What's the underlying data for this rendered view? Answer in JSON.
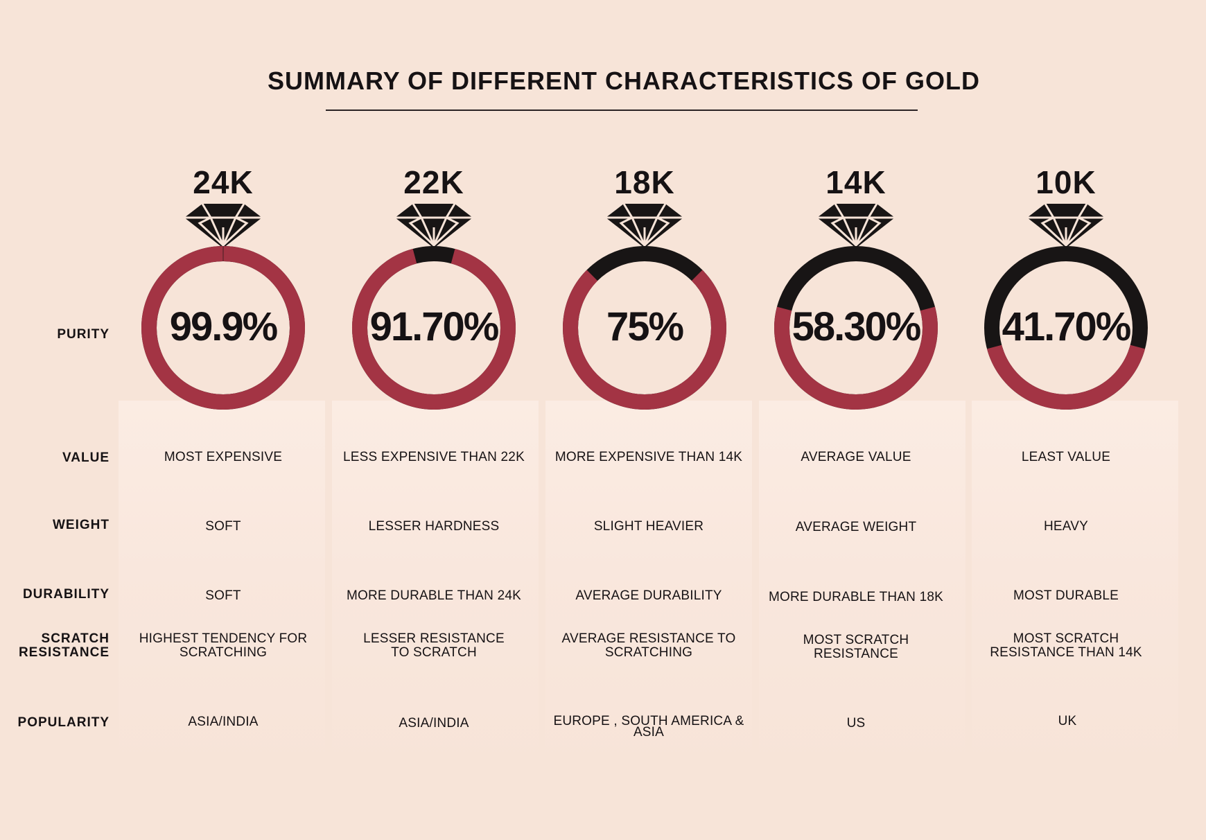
{
  "title": "SUMMARY OF DIFFERENT CHARACTERISTICS OF GOLD",
  "row_labels": {
    "purity": "PURITY",
    "value": "VALUE",
    "weight": "WEIGHT",
    "durability": "DURABILITY",
    "scratch_resistance": "SCRATCH RESISTANCE",
    "popularity": "POPULARITY"
  },
  "colors": {
    "ring_fill": "#a33444",
    "ring_rest": "#181515",
    "background": "#f7e4d8",
    "diamond": "#181515",
    "diamond_lines": "#f7e4d8"
  },
  "icons": {
    "diamond": "diamond-icon",
    "ring": "ring-gauge-icon"
  },
  "columns": [
    {
      "karat": "24K",
      "purity_label": "99.9%",
      "purity_value": 99.9,
      "value": "MOST EXPENSIVE",
      "weight": "SOFT",
      "durability": "SOFT",
      "scratch_resistance": "HIGHEST TENDENCY FOR SCRATCHING",
      "popularity": "ASIA/INDIA"
    },
    {
      "karat": "22K",
      "purity_label": "91.70%",
      "purity_value": 91.7,
      "value": "LESS EXPENSIVE THAN 22K",
      "weight": "LESSER HARDNESS",
      "durability": "MORE DURABLE THAN 24K",
      "scratch_resistance": "LESSER RESISTANCE TO SCRATCH",
      "popularity": "ASIA/INDIA"
    },
    {
      "karat": "18K",
      "purity_label": "75%",
      "purity_value": 75,
      "value": "MORE EXPENSIVE THAN 14K",
      "weight": "SLIGHT HEAVIER",
      "durability": "AVERAGE DURABILITY",
      "scratch_resistance": "AVERAGE RESISTANCE TO SCRATCHING",
      "popularity": "EUROPE , SOUTH AMERICA & ASIA"
    },
    {
      "karat": "14K",
      "purity_label": "58.30%",
      "purity_value": 58.3,
      "value": "AVERAGE VALUE",
      "weight": "AVERAGE WEIGHT",
      "durability": "MORE DURABLE THAN 18K",
      "scratch_resistance": "MOST SCRATCH RESISTANCE",
      "popularity": "US"
    },
    {
      "karat": "10K",
      "purity_label": "41.70%",
      "purity_value": 41.7,
      "value": "LEAST VALUE",
      "weight": "HEAVY",
      "durability": "MOST DURABLE",
      "scratch_resistance": "MOST SCRATCH RESISTANCE THAN 14K",
      "popularity": "UK"
    }
  ]
}
